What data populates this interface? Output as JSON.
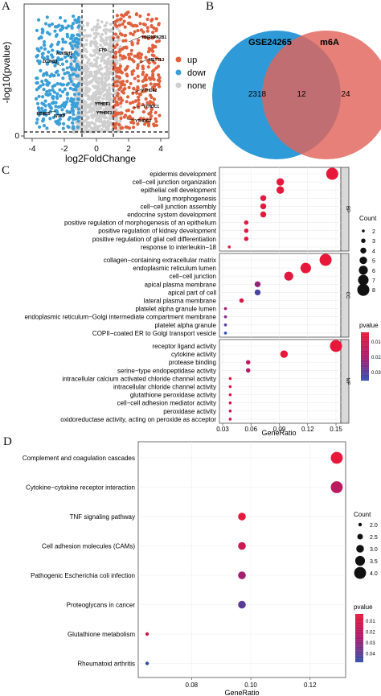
{
  "panels": {
    "a": "A",
    "b": "B",
    "c": "C",
    "d": "D"
  },
  "volcano": {
    "xlabel": "log2FoldChange",
    "ylabel": "-log10(pvalue)",
    "xticks": [
      "-4",
      "-2",
      "0",
      "2",
      "4"
    ],
    "ytick_zero": "0",
    "legend": [
      {
        "label": "up",
        "color": "#e0613e"
      },
      {
        "label": "down",
        "color": "#3b9fd8"
      },
      {
        "label": "none",
        "color": "#cfcfcf"
      }
    ],
    "genes": [
      "HNRNPA2B1",
      "METTL3",
      "YTHDF2",
      "YTHDC1",
      "YTHDC2",
      "YTHDF1",
      "YTHDF3",
      "FTO",
      "ALKBH5",
      "ZC3H13",
      "RBM15",
      "WTAP"
    ]
  },
  "venn": {
    "left_label": "GSE24265",
    "right_label": "m6A",
    "left_only": "2318",
    "overlap": "12",
    "right_only": "24",
    "left_color": "#2e9ad8",
    "right_color": "#e0645a"
  },
  "go": {
    "xlabel": "GeneRatio",
    "xticks": [
      "0.03",
      "0.06",
      "0.09",
      "0.12",
      "0.15"
    ],
    "count_title": "Count",
    "count_levels": [
      "2",
      "3",
      "4",
      "5",
      "6",
      "7",
      "8"
    ],
    "pvalue_title": "pvalue",
    "pvalue_ticks": [
      "0.01",
      "0.02",
      "0.03"
    ],
    "facets": [
      "BP",
      "CC",
      "MF"
    ]
  },
  "kegg": {
    "xlabel": "GeneRatio",
    "xticks": [
      "0.08",
      "0.10",
      "0.12"
    ],
    "count_title": "Count",
    "count_levels": [
      "2.0",
      "2.5",
      "3.0",
      "3.5",
      "4.0"
    ],
    "pvalue_title": "pvalue",
    "pvalue_ticks": [
      "0.01",
      "0.02",
      "0.03",
      "0.04"
    ]
  },
  "chart_data": [
    {
      "type": "scatter",
      "xlabel": "log2FoldChange",
      "ylabel": "-log10(pvalue)",
      "xlim": [
        -4.5,
        4.5
      ],
      "thresholds": {
        "x": [
          -1,
          1
        ]
      },
      "legend": [
        "up",
        "down",
        "none"
      ]
    },
    {
      "type": "other",
      "subtype": "venn",
      "sets": [
        {
          "name": "GSE24265",
          "only": 2318
        },
        {
          "name": "m6A",
          "only": 24
        }
      ],
      "overlap": 12
    },
    {
      "type": "scatter",
      "subtype": "dotplot",
      "xlabel": "GeneRatio",
      "xlim": [
        0.03,
        0.15
      ],
      "groups": [
        {
          "name": "BP",
          "terms": [
            {
              "label": "epidermis development",
              "x": 0.146,
              "count": 8,
              "p": 0.001
            },
            {
              "label": "cell−cell junction organization",
              "x": 0.091,
              "count": 5,
              "p": 0.002
            },
            {
              "label": "epithelial cell development",
              "x": 0.091,
              "count": 5,
              "p": 0.002
            },
            {
              "label": "lung morphogenesis",
              "x": 0.073,
              "count": 4,
              "p": 0.002
            },
            {
              "label": "cell−cell junction assembly",
              "x": 0.073,
              "count": 4,
              "p": 0.002
            },
            {
              "label": "endocrine system development",
              "x": 0.073,
              "count": 4,
              "p": 0.002
            },
            {
              "label": "positive regulation of morphogenesis of an epithelium",
              "x": 0.055,
              "count": 3,
              "p": 0.002
            },
            {
              "label": "positive regulation of kidney development",
              "x": 0.055,
              "count": 3,
              "p": 0.002
            },
            {
              "label": "positive regulation of glial cell differentiation",
              "x": 0.055,
              "count": 3,
              "p": 0.002
            },
            {
              "label": "response to interleukin−18",
              "x": 0.037,
              "count": 2,
              "p": 0.003
            }
          ]
        },
        {
          "name": "CC",
          "terms": [
            {
              "label": "collagen−containing extracellular matrix",
              "x": 0.139,
              "count": 8,
              "p": 0.001
            },
            {
              "label": "endoplasmic reticulum lumen",
              "x": 0.118,
              "count": 7,
              "p": 0.001
            },
            {
              "label": "cell−cell junction",
              "x": 0.1,
              "count": 6,
              "p": 0.003
            },
            {
              "label": "apical plasma membrane",
              "x": 0.067,
              "count": 4,
              "p": 0.02
            },
            {
              "label": "apical part of cell",
              "x": 0.067,
              "count": 4,
              "p": 0.03
            },
            {
              "label": "lateral plasma membrane",
              "x": 0.05,
              "count": 3,
              "p": 0.005
            },
            {
              "label": "platelet alpha granule lumen",
              "x": 0.033,
              "count": 2,
              "p": 0.018
            },
            {
              "label": "endoplasmic reticulum−Golgi intermediate compartment membrane",
              "x": 0.033,
              "count": 2,
              "p": 0.022
            },
            {
              "label": "platelet alpha granule",
              "x": 0.033,
              "count": 2,
              "p": 0.028
            },
            {
              "label": "COPII−coated ER to Golgi transport vesicle",
              "x": 0.033,
              "count": 2,
              "p": 0.033
            }
          ]
        },
        {
          "name": "MF",
          "terms": [
            {
              "label": "receptor ligand activity",
              "x": 0.15,
              "count": 8,
              "p": 0.001
            },
            {
              "label": "cytokine activity",
              "x": 0.095,
              "count": 5,
              "p": 0.001
            },
            {
              "label": "protease binding",
              "x": 0.057,
              "count": 3,
              "p": 0.012
            },
            {
              "label": "serine−type endopeptidase activity",
              "x": 0.057,
              "count": 3,
              "p": 0.015
            },
            {
              "label": "intracellular calcium activated chloride channel activity",
              "x": 0.038,
              "count": 2,
              "p": 0.003
            },
            {
              "label": "intracellular chloride channel activity",
              "x": 0.038,
              "count": 2,
              "p": 0.004
            },
            {
              "label": "glutathione peroxidase activity",
              "x": 0.038,
              "count": 2,
              "p": 0.006
            },
            {
              "label": "cell−cell adhesion mediator activity",
              "x": 0.038,
              "count": 2,
              "p": 0.007
            },
            {
              "label": "peroxidase activity",
              "x": 0.038,
              "count": 2,
              "p": 0.01
            },
            {
              "label": "oxidoreductase activity, acting on peroxide as acceptor",
              "x": 0.038,
              "count": 2,
              "p": 0.012
            }
          ]
        }
      ]
    },
    {
      "type": "scatter",
      "subtype": "dotplot",
      "xlabel": "GeneRatio",
      "xlim": [
        0.062,
        0.132
      ],
      "terms": [
        {
          "label": "Complement and coagulation cascades",
          "x": 0.129,
          "count": 4,
          "p": 0.003
        },
        {
          "label": "Cytokine−cytokine receptor interaction",
          "x": 0.129,
          "count": 4,
          "p": 0.018
        },
        {
          "label": "TNF signaling pathway",
          "x": 0.097,
          "count": 3,
          "p": 0.003
        },
        {
          "label": "Cell adhesion molecules (CAMs)",
          "x": 0.097,
          "count": 3,
          "p": 0.012
        },
        {
          "label": "Pathogenic Escherichia coli infection",
          "x": 0.097,
          "count": 3,
          "p": 0.025
        },
        {
          "label": "Proteoglycans in cancer",
          "x": 0.097,
          "count": 3,
          "p": 0.038
        },
        {
          "label": "Glutathione metabolism",
          "x": 0.065,
          "count": 2,
          "p": 0.012
        },
        {
          "label": "Rheumatoid arthritis",
          "x": 0.065,
          "count": 2,
          "p": 0.045
        }
      ]
    }
  ]
}
